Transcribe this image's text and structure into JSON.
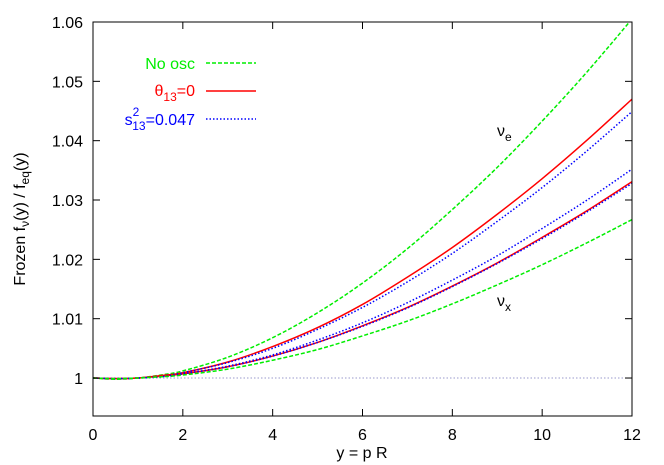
{
  "chart_data": {
    "type": "line",
    "xlabel": "y = p R",
    "ylabel": {
      "main": "Frozen f",
      "sub1": "ν",
      "mid": "(y) / f",
      "sub2": "eq",
      "end": "(y)"
    },
    "xlim": [
      0,
      12
    ],
    "ylim": [
      0.9936,
      1.06
    ],
    "xticks": [
      "0",
      "2",
      "4",
      "6",
      "8",
      "10",
      "12"
    ],
    "yticks": [
      "1",
      "1.01",
      "1.02",
      "1.03",
      "1.04",
      "1.05",
      "1.06"
    ],
    "grid": false,
    "legend_placement": "top-left",
    "legend": [
      {
        "label": "No osc",
        "style": "dashed",
        "color": "#00ee00"
      },
      {
        "label_main": "θ",
        "label_sub": "13",
        "label_end": "=0",
        "style": "solid",
        "color": "#ff0000"
      },
      {
        "label_main": "s",
        "label_sup": "2",
        "label_sub": "13",
        "label_end": "=0.047",
        "style": "dotted",
        "color": "#0000ff"
      }
    ],
    "annotations": [
      {
        "main": "ν",
        "sub": "e",
        "x": 8.95,
        "y": 1.041
      },
      {
        "main": "ν",
        "sub": "x",
        "x": 8.95,
        "y": 1.0115
      }
    ],
    "reference_line": {
      "y": 1,
      "color": "#9999cc",
      "style": "dotted"
    },
    "x": [
      0,
      0.5,
      1,
      1.5,
      2,
      3,
      4,
      5,
      6,
      7,
      8,
      9,
      10,
      11,
      12
    ],
    "series": [
      {
        "group": "No osc",
        "flavor": "e",
        "color": "#00ee00",
        "style": "dashed",
        "values": [
          1,
          0.9998,
          1,
          1.0005,
          1.0012,
          1.0035,
          1.0068,
          1.011,
          1.016,
          1.0218,
          1.0284,
          1.0355,
          1.0433,
          1.0516,
          1.0605
        ]
      },
      {
        "group": "θ13=0",
        "flavor": "e",
        "color": "#ff0000",
        "style": "solid",
        "values": [
          1,
          0.9999,
          1,
          1.0004,
          1.0009,
          1.0027,
          1.0053,
          1.0085,
          1.0124,
          1.017,
          1.022,
          1.0276,
          1.0336,
          1.0401,
          1.047
        ]
      },
      {
        "group": "s13^2=0.047",
        "flavor": "e",
        "color": "#0000ff",
        "style": "dotted",
        "values": [
          1,
          0.9999,
          1,
          1.0003,
          1.0009,
          1.0026,
          1.005,
          1.0082,
          1.0119,
          1.0162,
          1.021,
          1.0264,
          1.0321,
          1.0383,
          1.0449
        ]
      },
      {
        "group": "s13^2=0.047",
        "flavor": "x",
        "color": "#0000ff",
        "style": "dotted",
        "values": [
          1,
          0.9999,
          1,
          1.0003,
          1.0007,
          1.002,
          1.0039,
          1.0064,
          1.0093,
          1.0127,
          1.0165,
          1.0206,
          1.0252,
          1.03,
          1.0352
        ]
      },
      {
        "group": "θ13=0",
        "flavor": "x",
        "color": "#ff0000",
        "style": "solid",
        "values": [
          1,
          0.9999,
          1,
          1.0003,
          1.0007,
          1.0019,
          1.0037,
          1.006,
          1.0088,
          1.0119,
          1.0155,
          1.0194,
          1.0237,
          1.0282,
          1.0331
        ]
      },
      {
        "group": "s13^2=0.047",
        "flavor": "x2",
        "color": "#0000ff",
        "style": "dotted",
        "values": [
          1,
          0.9999,
          1,
          1.0002,
          1.0007,
          1.0019,
          1.0037,
          1.006,
          1.0087,
          1.0118,
          1.0154,
          1.0193,
          1.0235,
          1.028,
          1.0328
        ]
      },
      {
        "group": "No osc",
        "flavor": "x",
        "color": "#00ee00",
        "style": "dashed",
        "values": [
          1,
          0.9999,
          1,
          1.0002,
          1.0005,
          1.0015,
          1.003,
          1.0048,
          1.0071,
          1.0096,
          1.0125,
          1.0157,
          1.0191,
          1.0228,
          1.0267
        ]
      }
    ]
  }
}
